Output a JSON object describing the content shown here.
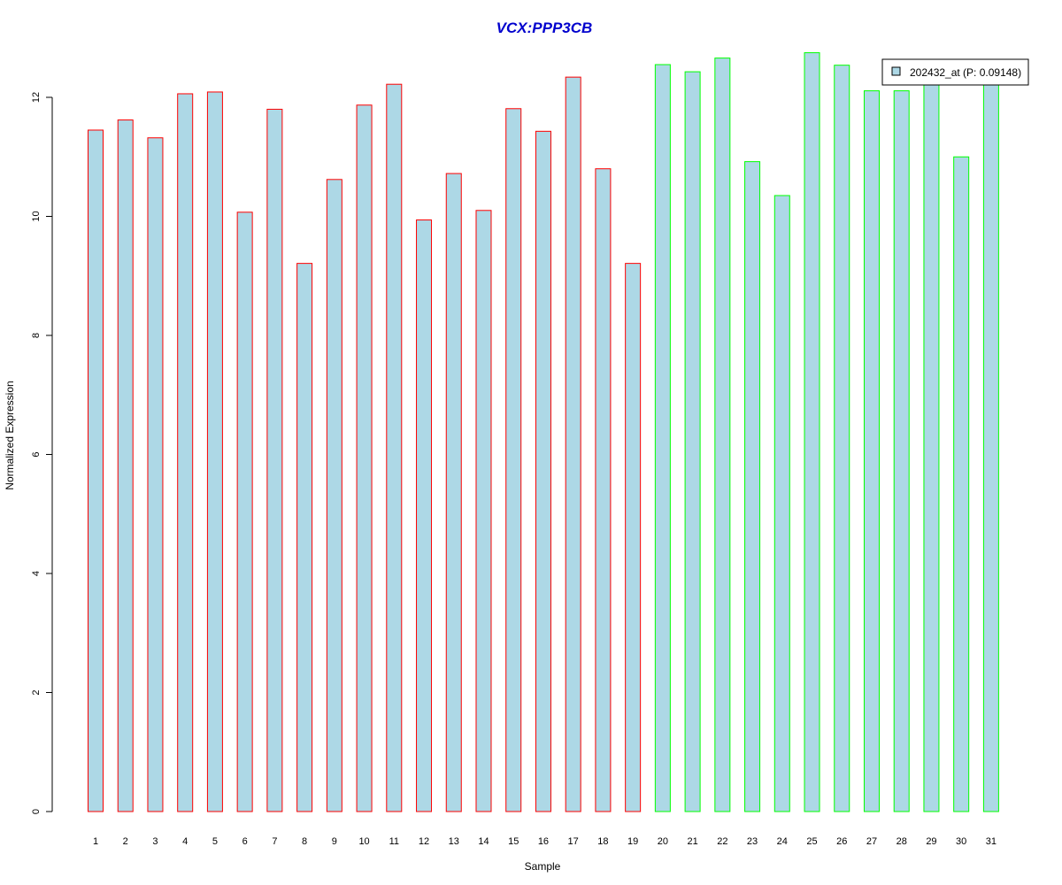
{
  "chart_data": {
    "type": "bar",
    "title": "VCX:PPP3CB",
    "xlabel": "Sample",
    "ylabel": "Normalized Expression",
    "ylim": [
      0,
      12.6
    ],
    "yticks": [
      0,
      2,
      4,
      6,
      8,
      10,
      12
    ],
    "grid": false,
    "legend_position": "top-right",
    "categories": [
      "1",
      "2",
      "3",
      "4",
      "5",
      "6",
      "7",
      "8",
      "9",
      "10",
      "11",
      "12",
      "13",
      "14",
      "15",
      "16",
      "17",
      "18",
      "19",
      "20",
      "21",
      "22",
      "23",
      "24",
      "25",
      "26",
      "27",
      "28",
      "29",
      "30",
      "31"
    ],
    "series": [
      {
        "name": "202432_at (P: 0.09148)",
        "values": [
          11.45,
          11.62,
          11.32,
          12.06,
          12.09,
          10.07,
          11.8,
          9.21,
          10.62,
          11.87,
          12.22,
          9.94,
          10.72,
          10.1,
          11.81,
          11.43,
          12.34,
          10.8,
          9.21,
          12.55,
          12.43,
          12.66,
          10.92,
          10.35,
          12.75,
          12.54,
          12.11,
          12.11,
          12.28,
          11.0,
          12.28
        ],
        "fill_color": "#add8e6",
        "group_colors": [
          "#ff0000",
          "#ff0000",
          "#ff0000",
          "#ff0000",
          "#ff0000",
          "#ff0000",
          "#ff0000",
          "#ff0000",
          "#ff0000",
          "#ff0000",
          "#ff0000",
          "#ff0000",
          "#ff0000",
          "#ff0000",
          "#ff0000",
          "#ff0000",
          "#ff0000",
          "#ff0000",
          "#ff0000",
          "#00ff00",
          "#00ff00",
          "#00ff00",
          "#00ff00",
          "#00ff00",
          "#00ff00",
          "#00ff00",
          "#00ff00",
          "#00ff00",
          "#00ff00",
          "#00ff00",
          "#00ff00"
        ]
      }
    ],
    "title_color": "#0000cd",
    "legend_label": "202432_at (P: 0.09148)"
  }
}
